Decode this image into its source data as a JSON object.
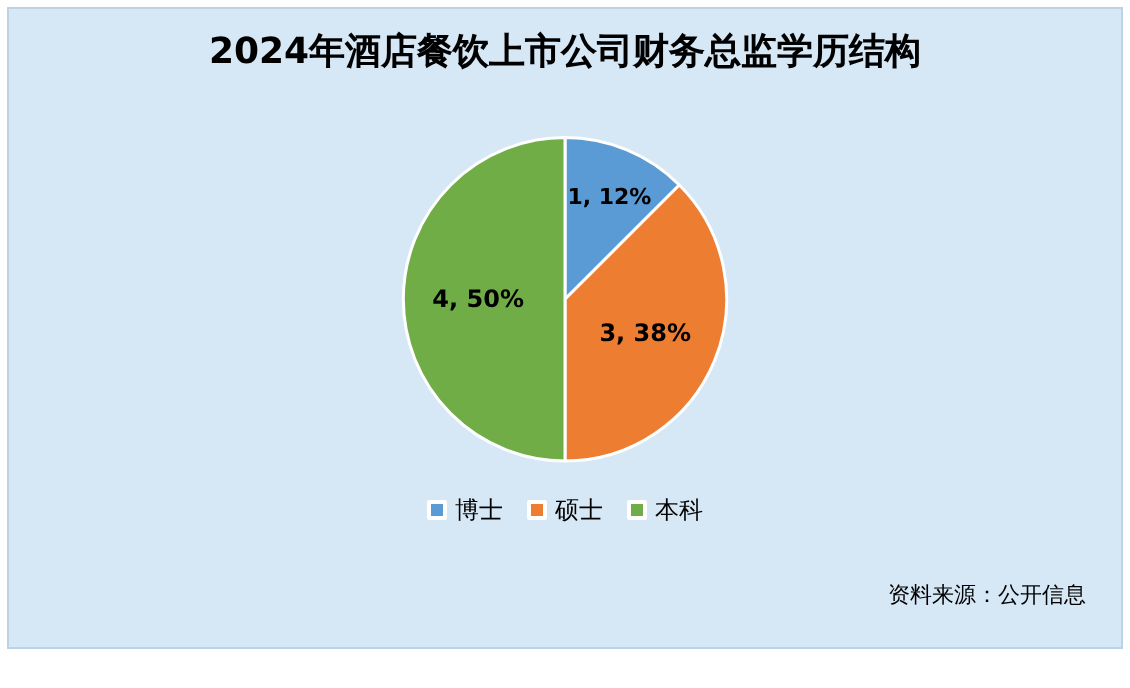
{
  "chart_data": {
    "type": "pie",
    "title": "2024年酒店餐饮上市公司财务总监学历结构",
    "categories": [
      "博士",
      "硕士",
      "本科"
    ],
    "values": [
      1,
      3,
      4
    ],
    "value_labels": [
      "1, 12%",
      "3, 38%",
      "4, 50%"
    ],
    "colors": [
      "#5b9bd5",
      "#ed7d31",
      "#70ad47"
    ],
    "legend": "bottom",
    "annotations": [
      "资料来源：公开信息"
    ]
  }
}
